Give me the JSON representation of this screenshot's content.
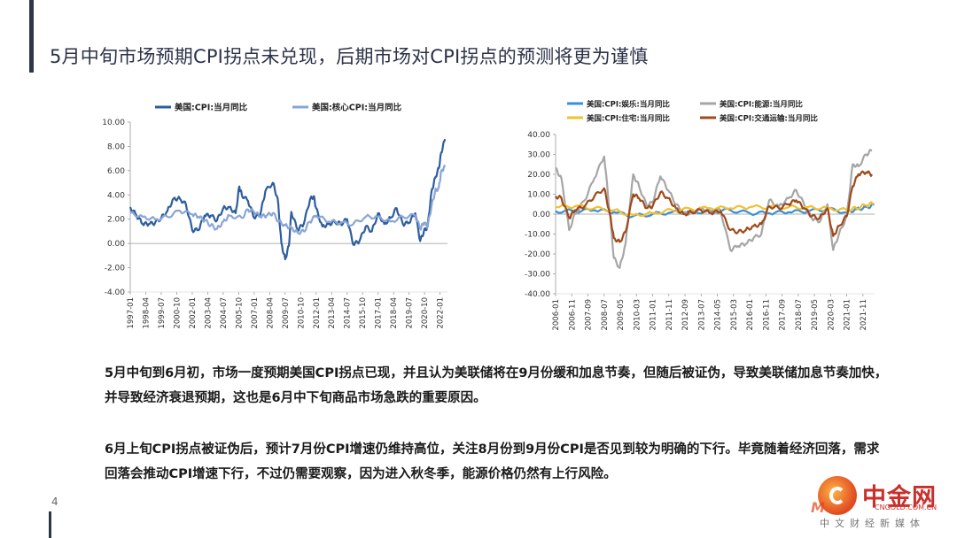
{
  "page": {
    "title": "5月中旬市场预期CPI拐点未兑现，后期市场对CPI拐点的预测将更为谨慎",
    "page_number": "4",
    "paragraph1": "5月中旬到6月初，市场一度预期美国CPI拐点已现，并且认为美联储将在9月份缓和加息节奏，但随后被证伪，导致美联储加息节奏加快，并导致经济衰退预期，这也是6月中下旬商品市场急跌的重要原因。",
    "paragraph2": "6月上旬CPI拐点被证伪后，预计7月份CPI增速仍维持高位，关注8月份到9月份CPI是否见到较为明确的下行。毕竟随着经济回落，需求回落会推动CPI增速下行，不过仍需要观察，因为进入秋冬季，能源价格仍然有上行风险。",
    "logo": {
      "main": "中金网",
      "site": "CNGOLD.COM.CN",
      "sub": "中文财经新媒体"
    }
  },
  "chart_data": [
    {
      "type": "line",
      "legend_position": "top",
      "yticks": [
        "10.00",
        "8.00",
        "6.00",
        "4.00",
        "2.00",
        "0.00",
        "-2.00",
        "-4.00"
      ],
      "ylim": [
        -4,
        10
      ],
      "xticks": [
        "1997-01",
        "1998-04",
        "1999-07",
        "2000-10",
        "2002-01",
        "2003-04",
        "2004-07",
        "2005-10",
        "2007-01",
        "2008-04",
        "2009-07",
        "2010-10",
        "2012-01",
        "2013-04",
        "2014-07",
        "2015-10",
        "2017-01",
        "2018-04",
        "2019-07",
        "2020-10",
        "2022-01"
      ],
      "series": [
        {
          "name": "美国:CPI:当月同比",
          "color": "#2e5d9f",
          "x": [
            1997.0,
            1997.5,
            1998.0,
            1998.5,
            1999.0,
            1999.5,
            2000.0,
            2000.5,
            2001.0,
            2001.5,
            2002.0,
            2002.5,
            2003.0,
            2003.5,
            2004.0,
            2004.5,
            2005.0,
            2005.5,
            2005.8,
            2006.0,
            2006.5,
            2007.0,
            2007.5,
            2007.9,
            2008.5,
            2008.9,
            2009.2,
            2009.5,
            2009.8,
            2010.0,
            2010.5,
            2011.0,
            2011.5,
            2011.8,
            2012.0,
            2012.5,
            2013.0,
            2013.5,
            2014.0,
            2014.5,
            2015.0,
            2015.5,
            2016.0,
            2016.5,
            2017.0,
            2017.5,
            2018.0,
            2018.5,
            2019.0,
            2019.5,
            2020.0,
            2020.4,
            2020.7,
            2021.0,
            2021.3,
            2021.6,
            2021.9,
            2022.1,
            2022.4
          ],
          "values": [
            3.0,
            2.3,
            1.6,
            1.6,
            1.7,
            2.1,
            2.7,
            3.7,
            3.7,
            3.2,
            1.1,
            1.1,
            2.3,
            2.3,
            1.9,
            2.9,
            3.0,
            2.5,
            4.7,
            4.0,
            3.5,
            2.1,
            2.4,
            4.3,
            5.0,
            3.7,
            0.0,
            -1.3,
            -0.2,
            2.6,
            1.1,
            1.6,
            3.6,
            3.9,
            2.9,
            1.4,
            1.6,
            1.8,
            1.6,
            2.0,
            -0.1,
            0.2,
            1.4,
            1.0,
            2.5,
            1.6,
            2.1,
            2.9,
            1.6,
            1.7,
            2.5,
            0.2,
            1.0,
            1.4,
            4.2,
            5.4,
            6.2,
            7.5,
            8.6
          ]
        },
        {
          "name": "美国:核心CPI:当月同比",
          "color": "#8aa6d4",
          "x": [
            1997.0,
            1998.0,
            1999.0,
            2000.0,
            2001.0,
            2002.0,
            2002.5,
            2003.0,
            2003.5,
            2004.0,
            2004.5,
            2005.0,
            2006.0,
            2006.5,
            2007.0,
            2007.5,
            2008.0,
            2008.5,
            2009.0,
            2009.5,
            2010.0,
            2010.5,
            2011.0,
            2011.5,
            2012.0,
            2013.0,
            2014.0,
            2015.0,
            2016.0,
            2017.0,
            2018.0,
            2019.0,
            2020.0,
            2020.4,
            2020.7,
            2021.0,
            2021.3,
            2021.6,
            2021.9,
            2022.1,
            2022.4
          ],
          "values": [
            2.5,
            2.2,
            2.0,
            2.2,
            2.7,
            2.4,
            2.2,
            1.9,
            1.5,
            1.2,
            1.8,
            2.3,
            2.1,
            2.8,
            2.6,
            2.2,
            2.3,
            2.5,
            1.8,
            1.5,
            1.3,
            0.9,
            1.0,
            1.8,
            2.3,
            1.8,
            1.7,
            1.6,
            2.2,
            2.2,
            1.8,
            2.2,
            2.3,
            1.2,
            1.7,
            1.4,
            3.0,
            4.3,
            4.6,
            6.0,
            6.3
          ]
        }
      ]
    },
    {
      "type": "line",
      "legend_position": "top",
      "yticks": [
        "40.00",
        "30.00",
        "20.00",
        "10.00",
        "0.00",
        "-10.00",
        "-20.00",
        "-30.00",
        "-40.00"
      ],
      "ylim": [
        -40,
        40
      ],
      "xticks": [
        "2006-01",
        "2006-11",
        "2007-09",
        "2008-07",
        "2009-05",
        "2010-03",
        "2011-01",
        "2011-11",
        "2012-09",
        "2013-07",
        "2014-05",
        "2015-03",
        "2016-01",
        "2016-11",
        "2017-09",
        "2018-07",
        "2019-05",
        "2020-03",
        "2021-01",
        "2021-11"
      ],
      "series": [
        {
          "name": "美国:CPI:娱乐:当月同比",
          "color": "#3b8fd8",
          "x": [
            2006.0,
            2007.0,
            2008.0,
            2009.0,
            2010.0,
            2011.0,
            2012.0,
            2013.0,
            2014.0,
            2015.0,
            2016.0,
            2017.0,
            2018.0,
            2019.0,
            2020.0,
            2021.0,
            2021.5,
            2022.0,
            2022.4
          ],
          "values": [
            1.5,
            1.5,
            2.0,
            1.0,
            -1.0,
            0.0,
            1.0,
            1.0,
            1.5,
            2.0,
            0.5,
            0.5,
            1.0,
            1.5,
            2.5,
            1.0,
            2.5,
            3.5,
            4.5
          ]
        },
        {
          "name": "美国:CPI:能源:当月同比",
          "color": "#a6a6a6",
          "x": [
            2006.0,
            2006.3,
            2006.7,
            2007.0,
            2007.5,
            2008.0,
            2008.5,
            2008.8,
            2009.0,
            2009.3,
            2009.6,
            2010.0,
            2010.3,
            2010.7,
            2011.0,
            2011.4,
            2011.8,
            2012.2,
            2012.6,
            2013.0,
            2013.5,
            2014.0,
            2014.5,
            2015.0,
            2015.4,
            2015.8,
            2016.2,
            2016.6,
            2017.0,
            2017.5,
            2018.0,
            2018.4,
            2018.8,
            2019.2,
            2019.6,
            2020.0,
            2020.3,
            2020.6,
            2021.0,
            2021.3,
            2021.6,
            2022.0,
            2022.3
          ],
          "values": [
            23.0,
            18.0,
            -8.0,
            0.0,
            7.0,
            18.0,
            29.0,
            0.0,
            -22.0,
            -27.0,
            -15.0,
            20.0,
            14.0,
            4.0,
            6.0,
            19.0,
            12.0,
            5.0,
            0.0,
            1.0,
            3.0,
            1.0,
            2.0,
            -18.0,
            -16.0,
            -15.0,
            -12.0,
            -10.0,
            7.0,
            4.0,
            8.0,
            12.0,
            5.0,
            -2.0,
            -4.0,
            5.0,
            -18.0,
            -10.0,
            -1.0,
            25.0,
            24.0,
            30.0,
            32.0
          ]
        },
        {
          "name": "美国:CPI:住宅:当月同比",
          "color": "#f2c12e",
          "x": [
            2006.0,
            2007.0,
            2008.0,
            2009.0,
            2010.0,
            2011.0,
            2012.0,
            2013.0,
            2014.0,
            2015.0,
            2016.0,
            2017.0,
            2018.0,
            2019.0,
            2020.0,
            2021.0,
            2021.5,
            2022.0,
            2022.4
          ],
          "values": [
            3.5,
            4.0,
            3.0,
            2.0,
            -0.5,
            0.5,
            2.0,
            2.5,
            3.0,
            3.0,
            3.5,
            3.5,
            3.5,
            3.5,
            3.0,
            2.0,
            3.0,
            4.5,
            5.5
          ]
        },
        {
          "name": "美国:CPI:交通运输:当月同比",
          "color": "#a04a1a",
          "x": [
            2006.0,
            2006.3,
            2006.7,
            2007.0,
            2007.5,
            2008.0,
            2008.5,
            2008.8,
            2009.0,
            2009.3,
            2009.6,
            2010.0,
            2010.3,
            2010.7,
            2011.0,
            2011.4,
            2011.8,
            2012.2,
            2012.6,
            2013.0,
            2013.5,
            2014.0,
            2014.5,
            2015.0,
            2015.4,
            2015.8,
            2016.2,
            2016.6,
            2017.0,
            2017.5,
            2018.0,
            2018.4,
            2018.8,
            2019.2,
            2019.6,
            2020.0,
            2020.3,
            2020.6,
            2021.0,
            2021.3,
            2021.6,
            2022.0,
            2022.3
          ],
          "values": [
            9.0,
            8.0,
            -2.0,
            2.0,
            4.0,
            9.0,
            13.0,
            0.0,
            -12.0,
            -14.0,
            -9.0,
            10.0,
            8.0,
            3.0,
            4.0,
            11.0,
            8.0,
            3.0,
            0.0,
            1.0,
            2.0,
            0.5,
            1.5,
            -8.0,
            -9.0,
            -8.0,
            -6.0,
            -5.0,
            4.0,
            3.0,
            5.0,
            7.0,
            3.0,
            -1.0,
            -2.0,
            3.0,
            -11.0,
            -6.0,
            -1.0,
            14.0,
            20.0,
            21.0,
            20.0
          ]
        }
      ]
    }
  ]
}
